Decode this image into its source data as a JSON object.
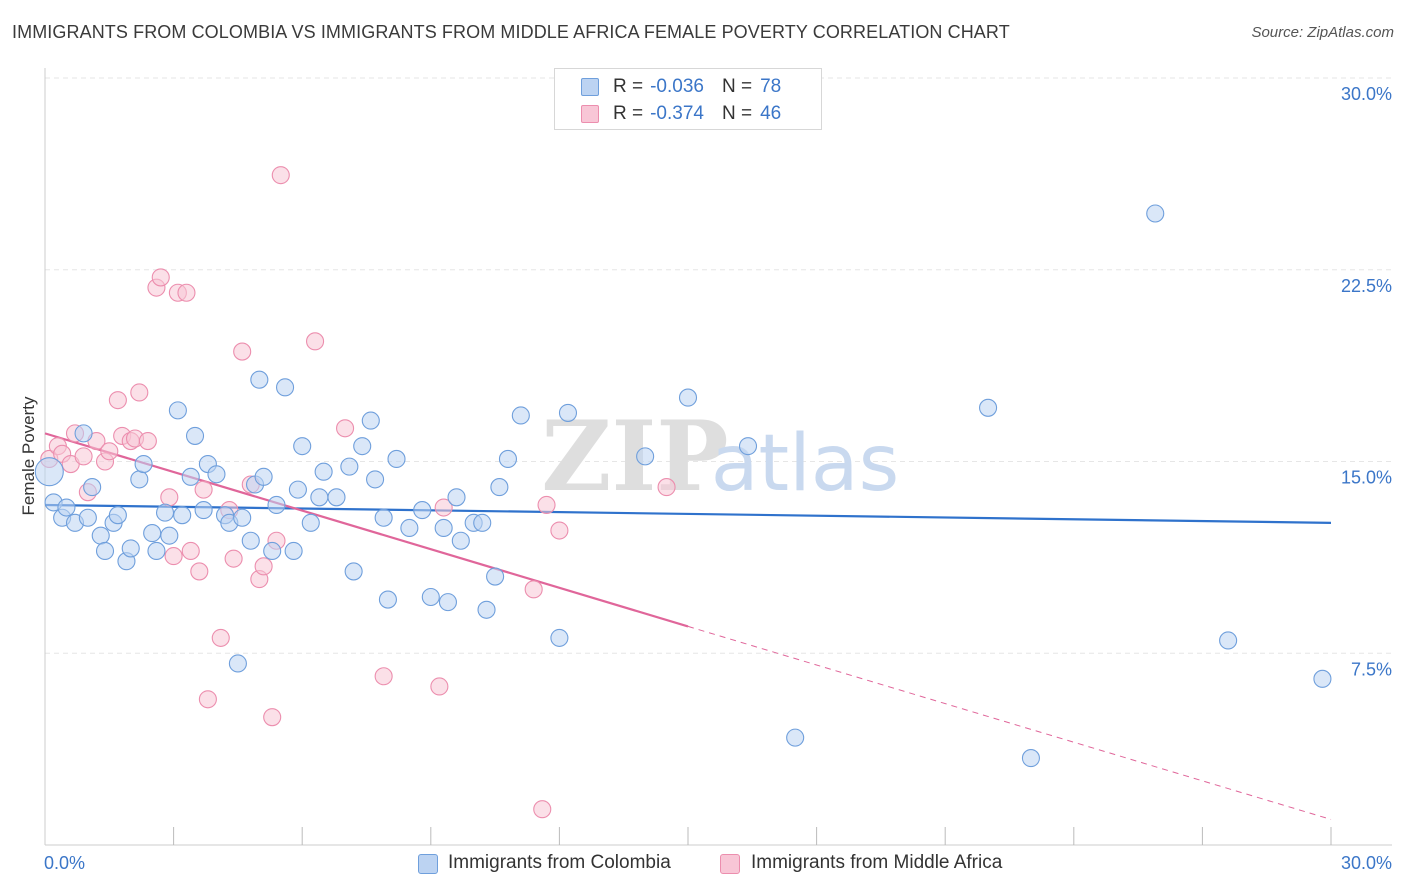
{
  "header": {
    "title": "IMMIGRANTS FROM COLOMBIA VS IMMIGRANTS FROM MIDDLE AFRICA FEMALE POVERTY CORRELATION CHART",
    "source": "Source: ZipAtlas.com"
  },
  "watermark": {
    "zip": "ZIP",
    "atlas": "atlas"
  },
  "legend": {
    "colombia": {
      "r_label": "R =",
      "r_value": "-0.036",
      "n_label": "N =",
      "n_value": "78"
    },
    "middle_africa": {
      "r_label": "R =",
      "r_value": "-0.374",
      "n_label": "N =",
      "n_value": "46"
    }
  },
  "colors": {
    "blue_fill": "#bcd3f2",
    "blue_stroke": "#6f9fdc",
    "blue_line": "#2f72cc",
    "pink_fill": "#f8c6d6",
    "pink_stroke": "#ec8eae",
    "pink_line": "#e0669a",
    "tick_text": "#3b76c8"
  },
  "chart_data": {
    "type": "scatter",
    "title": "IMMIGRANTS FROM COLOMBIA VS IMMIGRANTS FROM MIDDLE AFRICA FEMALE POVERTY CORRELATION CHART",
    "xlabel": "",
    "ylabel": "Female Poverty",
    "xlim": [
      0,
      30
    ],
    "ylim": [
      0,
      30
    ],
    "x_tick_labels": [
      "0.0%",
      "30.0%"
    ],
    "y_ticks": [
      7.5,
      15.0,
      22.5,
      30.0
    ],
    "y_tick_labels": [
      "7.5%",
      "15.0%",
      "22.5%",
      "30.0%"
    ],
    "grid": true,
    "legend_position": "top-center",
    "series": [
      {
        "name": "Immigrants from Colombia",
        "color": "blue",
        "trend": {
          "x0": 0,
          "y0": 13.3,
          "x1": 30,
          "y1": 12.6,
          "dashed_from_x": null
        },
        "points": [
          [
            0.1,
            14.6
          ],
          [
            0.2,
            13.4
          ],
          [
            0.4,
            12.8
          ],
          [
            0.5,
            13.2
          ],
          [
            0.7,
            12.6
          ],
          [
            0.9,
            16.1
          ],
          [
            1.0,
            12.8
          ],
          [
            1.1,
            14.0
          ],
          [
            1.3,
            12.1
          ],
          [
            1.4,
            11.5
          ],
          [
            1.6,
            12.6
          ],
          [
            1.7,
            12.9
          ],
          [
            1.9,
            11.1
          ],
          [
            2.0,
            11.6
          ],
          [
            2.2,
            14.3
          ],
          [
            2.3,
            14.9
          ],
          [
            2.5,
            12.2
          ],
          [
            2.6,
            11.5
          ],
          [
            2.8,
            13.0
          ],
          [
            2.9,
            12.1
          ],
          [
            3.1,
            17.0
          ],
          [
            3.2,
            12.9
          ],
          [
            3.4,
            14.4
          ],
          [
            3.5,
            16.0
          ],
          [
            3.7,
            13.1
          ],
          [
            3.8,
            14.9
          ],
          [
            4.0,
            14.5
          ],
          [
            4.2,
            12.9
          ],
          [
            4.3,
            12.6
          ],
          [
            4.5,
            7.1
          ],
          [
            4.6,
            12.8
          ],
          [
            4.8,
            11.9
          ],
          [
            4.9,
            14.1
          ],
          [
            5.0,
            18.2
          ],
          [
            5.1,
            14.4
          ],
          [
            5.3,
            11.5
          ],
          [
            5.4,
            13.3
          ],
          [
            5.6,
            17.9
          ],
          [
            5.8,
            11.5
          ],
          [
            5.9,
            13.9
          ],
          [
            6.0,
            15.6
          ],
          [
            6.2,
            12.6
          ],
          [
            6.4,
            13.6
          ],
          [
            6.5,
            14.6
          ],
          [
            6.8,
            13.6
          ],
          [
            7.1,
            14.8
          ],
          [
            7.2,
            10.7
          ],
          [
            7.4,
            15.6
          ],
          [
            7.6,
            16.6
          ],
          [
            7.7,
            14.3
          ],
          [
            7.9,
            12.8
          ],
          [
            8.0,
            9.6
          ],
          [
            8.2,
            15.1
          ],
          [
            8.5,
            12.4
          ],
          [
            8.8,
            13.1
          ],
          [
            9.0,
            9.7
          ],
          [
            9.3,
            12.4
          ],
          [
            9.4,
            9.5
          ],
          [
            9.6,
            13.6
          ],
          [
            9.7,
            11.9
          ],
          [
            10.0,
            12.6
          ],
          [
            10.2,
            12.6
          ],
          [
            10.3,
            9.2
          ],
          [
            10.5,
            10.5
          ],
          [
            10.6,
            14.0
          ],
          [
            10.8,
            15.1
          ],
          [
            11.1,
            16.8
          ],
          [
            12.0,
            8.1
          ],
          [
            12.2,
            16.9
          ],
          [
            14.0,
            15.2
          ],
          [
            15.0,
            17.5
          ],
          [
            16.4,
            15.6
          ],
          [
            17.5,
            4.2
          ],
          [
            22.0,
            17.1
          ],
          [
            23.0,
            3.4
          ],
          [
            25.9,
            24.7
          ],
          [
            27.6,
            8.0
          ],
          [
            29.8,
            6.5
          ]
        ]
      },
      {
        "name": "Immigrants from Middle Africa",
        "color": "pink",
        "trend": {
          "x0": 0,
          "y0": 16.1,
          "x1": 30,
          "y1": 1.0,
          "dashed_from_x": 15.0
        },
        "points": [
          [
            0.1,
            15.1
          ],
          [
            0.3,
            15.6
          ],
          [
            0.4,
            15.3
          ],
          [
            0.6,
            14.9
          ],
          [
            0.7,
            16.1
          ],
          [
            0.9,
            15.2
          ],
          [
            1.0,
            13.8
          ],
          [
            1.2,
            15.8
          ],
          [
            1.4,
            15.0
          ],
          [
            1.5,
            15.4
          ],
          [
            1.7,
            17.4
          ],
          [
            1.8,
            16.0
          ],
          [
            2.0,
            15.8
          ],
          [
            2.1,
            15.9
          ],
          [
            2.2,
            17.7
          ],
          [
            2.4,
            15.8
          ],
          [
            2.6,
            21.8
          ],
          [
            2.7,
            22.2
          ],
          [
            2.9,
            13.6
          ],
          [
            3.0,
            11.3
          ],
          [
            3.1,
            21.6
          ],
          [
            3.3,
            21.6
          ],
          [
            3.4,
            11.5
          ],
          [
            3.6,
            10.7
          ],
          [
            3.7,
            13.9
          ],
          [
            3.8,
            5.7
          ],
          [
            4.1,
            8.1
          ],
          [
            4.3,
            13.1
          ],
          [
            4.4,
            11.2
          ],
          [
            4.6,
            19.3
          ],
          [
            4.8,
            14.1
          ],
          [
            5.0,
            10.4
          ],
          [
            5.1,
            10.9
          ],
          [
            5.3,
            5.0
          ],
          [
            5.4,
            11.9
          ],
          [
            5.5,
            26.2
          ],
          [
            6.3,
            19.7
          ],
          [
            7.0,
            16.3
          ],
          [
            7.9,
            6.6
          ],
          [
            9.2,
            6.2
          ],
          [
            9.3,
            13.2
          ],
          [
            11.4,
            10.0
          ],
          [
            11.6,
            1.4
          ],
          [
            11.7,
            13.3
          ],
          [
            12.0,
            12.3
          ],
          [
            14.5,
            14.0
          ]
        ]
      }
    ]
  },
  "bottom_legend": {
    "colombia": "Immigrants from Colombia",
    "middle_africa": "Immigrants from Middle Africa"
  }
}
